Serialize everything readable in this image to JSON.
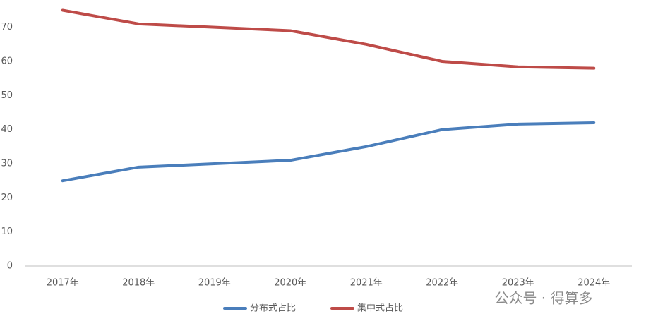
{
  "chart_data": {
    "type": "line",
    "categories": [
      "2017年",
      "2018年",
      "2019年",
      "2020年",
      "2021年",
      "2022年",
      "2023年",
      "2024年"
    ],
    "series": [
      {
        "name": "分布式占比",
        "color": "#4a7ebb",
        "values": [
          25,
          29,
          30,
          31,
          35,
          40,
          41.6,
          42
        ]
      },
      {
        "name": "集中式占比",
        "color": "#be4b48",
        "values": [
          75,
          71,
          70,
          69,
          65,
          60,
          58.4,
          58
        ]
      }
    ],
    "ylim": [
      0,
      78
    ],
    "yticks": [
      0,
      10,
      20,
      30,
      40,
      50,
      60,
      70
    ],
    "grid": false,
    "legend": "bottom",
    "annotation": "公众号 · 得算多"
  }
}
